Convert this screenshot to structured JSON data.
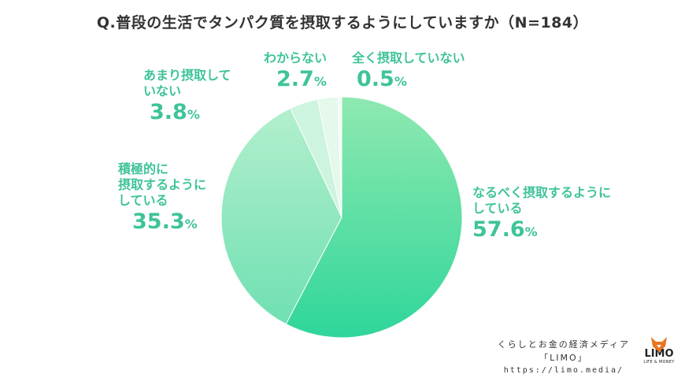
{
  "title": "Q.普段の生活でタンパク質を摂取するようにしていますか（N=184）",
  "chart_data": {
    "type": "pie",
    "start": "12 o'clock, clockwise",
    "slices": [
      {
        "label": "なるべく摂取するようにしている",
        "value": 57.6,
        "value_text": "57.6",
        "color": "#52dba0"
      },
      {
        "label": "積極的に摂取するようにしている",
        "value": 35.3,
        "value_text": "35.3",
        "color": "#8fe6b8"
      },
      {
        "label": "あまり摂取していない",
        "value": 3.8,
        "value_text": "3.8",
        "color": "#cdf4df"
      },
      {
        "label": "わからない",
        "value": 2.7,
        "value_text": "2.7",
        "color": "#e4f8ec"
      },
      {
        "label": "全く摂取していない",
        "value": 0.5,
        "value_text": "0.5",
        "color": "#f1fbf5"
      }
    ],
    "label_color": "#3fc39a",
    "percent_sign": "%",
    "label_lines": {
      "s0_line1": "なるべく摂取するように",
      "s0_line2": "している",
      "s1_line1": "積極的に",
      "s1_line2": "摂取するように",
      "s1_line3": "している",
      "s2_line1": "あまり摂取して",
      "s2_line2": "いない",
      "s3_line1": "わからない",
      "s4_line1": "全く摂取していない"
    }
  },
  "footer": {
    "media": "くらしとお金の経済メディア",
    "brand": "「LIMO」",
    "url": "https://limo.media/"
  },
  "logo": {
    "word": "LIMO",
    "sub": "LIFE & MONEY",
    "icon": "fox-icon",
    "color": "#e8741e"
  }
}
